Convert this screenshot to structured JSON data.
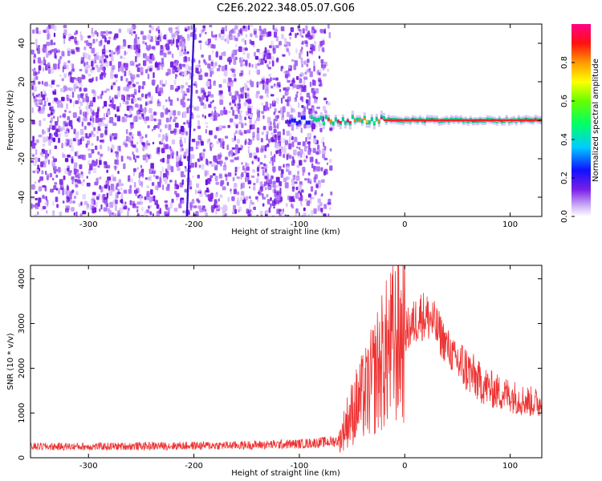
{
  "title": "C2E6.2022.348.05.07.G06",
  "chart_data": [
    {
      "type": "heatmap",
      "xlabel": "Height of straight line (km)",
      "ylabel": "Frequency (Hz)",
      "xlim": [
        -355,
        130
      ],
      "ylim": [
        -50,
        50
      ],
      "xticks": [
        -300,
        -200,
        -100,
        0,
        100
      ],
      "yticks": [
        -40,
        -20,
        0,
        20,
        40
      ],
      "colorbar": {
        "label": "Normalized spectral amplitude",
        "range": [
          0.0,
          1.0
        ],
        "ticks": [
          0.0,
          0.2,
          0.4,
          0.6,
          0.8
        ],
        "colormap": [
          "#ffffff",
          "#8a2be2",
          "#0000ff",
          "#00ffff",
          "#00ff00",
          "#ffff00",
          "#ff8000",
          "#ff0000",
          "#ff00a0"
        ]
      },
      "features": [
        {
          "name": "noise region",
          "x_range": [
            -355,
            -78
          ],
          "freq_range": [
            -50,
            50
          ],
          "amplitude": 0.1
        },
        {
          "name": "streak",
          "x_range": [
            -209,
            -198
          ],
          "freq_range": [
            -50,
            50
          ],
          "amplitude": 0.15
        },
        {
          "name": "carrier",
          "x_range": [
            -110,
            130
          ],
          "freq": 0,
          "amplitude_peak": 1.0
        }
      ]
    },
    {
      "type": "line",
      "xlabel": "Height of straight line (km)",
      "ylabel": "SNR (10 * v/v)",
      "xlim": [
        -355,
        130
      ],
      "ylim": [
        0,
        4300
      ],
      "xticks": [
        -300,
        -200,
        -100,
        0,
        100
      ],
      "yticks": [
        0,
        1000,
        2000,
        3000,
        4000
      ],
      "color": "#ee3333",
      "series": [
        {
          "x": [
            -355,
            -300,
            -250,
            -200,
            -150,
            -100,
            -80,
            -62,
            -55,
            -45,
            -35,
            -25,
            -15,
            -5,
            5,
            15,
            25,
            35,
            45,
            50,
            60,
            70,
            80,
            90,
            100,
            110,
            120,
            130
          ],
          "values": [
            250,
            250,
            260,
            270,
            280,
            310,
            340,
            380,
            800,
            1200,
            1500,
            2000,
            2400,
            2700,
            2900,
            3200,
            3100,
            2700,
            2300,
            2150,
            1950,
            1700,
            1550,
            1450,
            1400,
            1300,
            1250,
            1200
          ]
        }
      ]
    }
  ]
}
